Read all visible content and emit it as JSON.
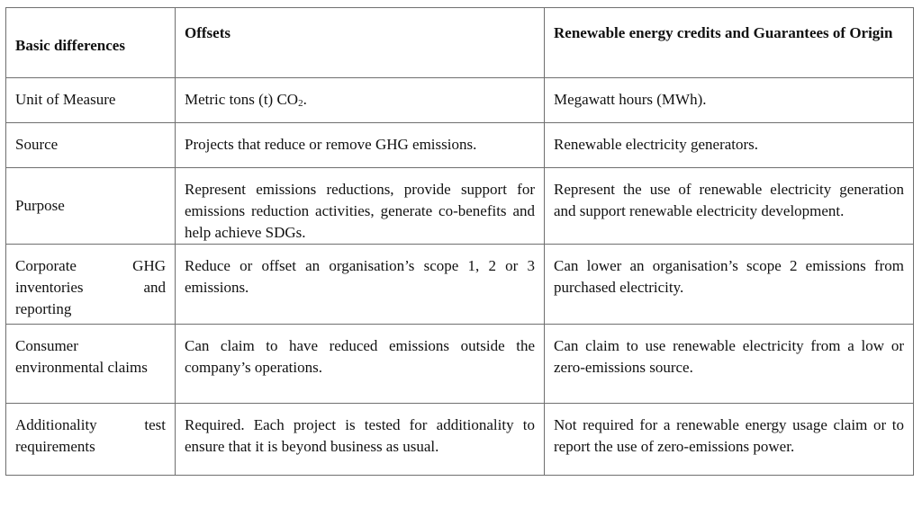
{
  "table": {
    "headers": [
      "Basic differences",
      "Offsets",
      "Renewable energy credits and Guarantees of Origin"
    ],
    "rows": [
      {
        "label": "Unit of Measure",
        "offsets_prefix": "Metric tons (t) CO",
        "offsets_sub": "2",
        "offsets_suffix": ".",
        "recs": "Megawatt hours (MWh)."
      },
      {
        "label": "Source",
        "offsets": "Projects that reduce or remove GHG emissions.",
        "recs": "Renewable electricity generators."
      },
      {
        "label": "Purpose",
        "offsets": "Represent emissions reductions, provide support for emissions reduction activities, generate co-benefits and help achieve SDGs.",
        "recs": "Represent the use of renewable electricity generation and support renewable electricity development."
      },
      {
        "label": "Corporate GHG inventories and reporting",
        "offsets": "Reduce or offset an organisation’s scope 1, 2 or 3 emissions.",
        "recs": "Can lower an organisation’s scope 2 emissions from purchased electricity."
      },
      {
        "label": "Consumer environmental claims",
        "offsets": "Can claim to have reduced emissions outside the company’s operations.",
        "recs": "Can claim to use renewable electricity from a low or zero-emissions source."
      },
      {
        "label": "Additionality test requirements",
        "offsets": "Required. Each project is tested for additionality to ensure that it is beyond business as usual.",
        "recs": "Not required for a renewable energy usage claim or to report the use of zero-emissions power."
      }
    ]
  }
}
